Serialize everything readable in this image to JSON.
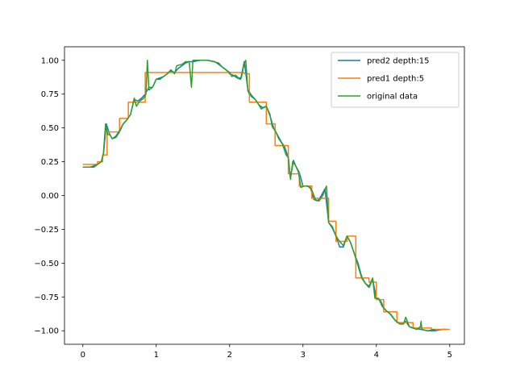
{
  "chart_data": {
    "type": "line",
    "title": "",
    "xlabel": "",
    "ylabel": "",
    "xlim": [
      -0.25,
      5.2
    ],
    "ylim": [
      -1.1,
      1.1
    ],
    "xticks": [
      0,
      1,
      2,
      3,
      4,
      5
    ],
    "xtick_labels": [
      "0",
      "1",
      "2",
      "3",
      "4",
      "5"
    ],
    "yticks": [
      1.0,
      0.75,
      0.5,
      0.25,
      0.0,
      -0.25,
      -0.5,
      -0.75,
      -1.0
    ],
    "ytick_labels": [
      "1.00",
      "0.75",
      "0.50",
      "0.25",
      "0.00",
      "−0.25",
      "−0.50",
      "−0.75",
      "−1.00"
    ],
    "grid": false,
    "legend_position": "top-right",
    "series": [
      {
        "name": "pred2 depth:15",
        "color": "#1f77b4",
        "points": [
          [
            0,
            0.21
          ],
          [
            0.1,
            0.21
          ],
          [
            0.15,
            0.21
          ],
          [
            0.2,
            0.23
          ],
          [
            0.25,
            0.25
          ],
          [
            0.28,
            0.3
          ],
          [
            0.32,
            0.53
          ],
          [
            0.36,
            0.46
          ],
          [
            0.4,
            0.42
          ],
          [
            0.45,
            0.43
          ],
          [
            0.5,
            0.47
          ],
          [
            0.55,
            0.53
          ],
          [
            0.6,
            0.56
          ],
          [
            0.65,
            0.6
          ],
          [
            0.7,
            0.71
          ],
          [
            0.75,
            0.7
          ],
          [
            0.8,
            0.72
          ],
          [
            0.85,
            0.75
          ],
          [
            0.9,
            0.8
          ],
          [
            0.95,
            0.8
          ],
          [
            1.0,
            0.86
          ],
          [
            1.05,
            0.86
          ],
          [
            1.1,
            0.88
          ],
          [
            1.15,
            0.9
          ],
          [
            1.2,
            0.92
          ],
          [
            1.25,
            0.91
          ],
          [
            1.3,
            0.94
          ],
          [
            1.35,
            0.96
          ],
          [
            1.4,
            0.98
          ],
          [
            1.45,
            0.99
          ],
          [
            1.5,
            0.99
          ],
          [
            1.6,
            1.0
          ],
          [
            1.7,
            1.0
          ],
          [
            1.8,
            0.99
          ],
          [
            1.85,
            0.97
          ],
          [
            1.9,
            0.95
          ],
          [
            1.95,
            0.93
          ],
          [
            2.0,
            0.9
          ],
          [
            2.05,
            0.89
          ],
          [
            2.1,
            0.87
          ],
          [
            2.15,
            0.86
          ],
          [
            2.2,
            0.99
          ],
          [
            2.25,
            0.78
          ],
          [
            2.3,
            0.74
          ],
          [
            2.35,
            0.71
          ],
          [
            2.4,
            0.67
          ],
          [
            2.45,
            0.65
          ],
          [
            2.5,
            0.66
          ],
          [
            2.55,
            0.59
          ],
          [
            2.6,
            0.5
          ],
          [
            2.65,
            0.45
          ],
          [
            2.7,
            0.4
          ],
          [
            2.75,
            0.36
          ],
          [
            2.8,
            0.28
          ],
          [
            2.83,
            0.13
          ],
          [
            2.87,
            0.26
          ],
          [
            2.9,
            0.22
          ],
          [
            2.95,
            0.17
          ],
          [
            3.0,
            0.07
          ],
          [
            3.05,
            0.07
          ],
          [
            3.1,
            0.06
          ],
          [
            3.15,
            -0.03
          ],
          [
            3.2,
            -0.04
          ],
          [
            3.25,
            0.0
          ],
          [
            3.3,
            0.05
          ],
          [
            3.35,
            -0.2
          ],
          [
            3.4,
            -0.24
          ],
          [
            3.45,
            -0.3
          ],
          [
            3.5,
            -0.38
          ],
          [
            3.55,
            -0.38
          ],
          [
            3.6,
            -0.3
          ],
          [
            3.65,
            -0.35
          ],
          [
            3.7,
            -0.43
          ],
          [
            3.75,
            -0.5
          ],
          [
            3.8,
            -0.6
          ],
          [
            3.85,
            -0.65
          ],
          [
            3.9,
            -0.68
          ],
          [
            3.95,
            -0.62
          ],
          [
            4.0,
            -0.76
          ],
          [
            4.05,
            -0.77
          ],
          [
            4.1,
            -0.83
          ],
          [
            4.15,
            -0.86
          ],
          [
            4.2,
            -0.88
          ],
          [
            4.25,
            -0.92
          ],
          [
            4.3,
            -0.94
          ],
          [
            4.35,
            -0.95
          ],
          [
            4.4,
            -0.93
          ],
          [
            4.45,
            -0.97
          ],
          [
            4.5,
            -0.98
          ],
          [
            4.6,
            -0.99
          ],
          [
            4.7,
            -1.0
          ],
          [
            4.8,
            -1.0
          ],
          [
            4.9,
            -0.99
          ],
          [
            4.95,
            -0.99
          ]
        ]
      },
      {
        "name": "pred1 depth:5",
        "color": "#ff7f0e",
        "points": [
          [
            0,
            0.23
          ],
          [
            0.2,
            0.23
          ],
          [
            0.2,
            0.25
          ],
          [
            0.27,
            0.25
          ],
          [
            0.27,
            0.3
          ],
          [
            0.33,
            0.3
          ],
          [
            0.33,
            0.47
          ],
          [
            0.5,
            0.47
          ],
          [
            0.5,
            0.57
          ],
          [
            0.62,
            0.57
          ],
          [
            0.62,
            0.69
          ],
          [
            0.85,
            0.69
          ],
          [
            0.85,
            0.91
          ],
          [
            2.2,
            0.91
          ],
          [
            2.2,
            0.9
          ],
          [
            2.27,
            0.9
          ],
          [
            2.27,
            0.69
          ],
          [
            2.5,
            0.69
          ],
          [
            2.5,
            0.53
          ],
          [
            2.62,
            0.53
          ],
          [
            2.62,
            0.37
          ],
          [
            2.8,
            0.37
          ],
          [
            2.8,
            0.16
          ],
          [
            2.95,
            0.16
          ],
          [
            2.95,
            0.07
          ],
          [
            3.12,
            0.07
          ],
          [
            3.12,
            -0.02
          ],
          [
            3.35,
            -0.02
          ],
          [
            3.35,
            -0.19
          ],
          [
            3.45,
            -0.19
          ],
          [
            3.45,
            -0.34
          ],
          [
            3.6,
            -0.34
          ],
          [
            3.6,
            -0.3
          ],
          [
            3.72,
            -0.3
          ],
          [
            3.72,
            -0.61
          ],
          [
            3.9,
            -0.61
          ],
          [
            3.9,
            -0.64
          ],
          [
            4.0,
            -0.64
          ],
          [
            4.0,
            -0.77
          ],
          [
            4.1,
            -0.77
          ],
          [
            4.1,
            -0.86
          ],
          [
            4.28,
            -0.86
          ],
          [
            4.28,
            -0.94
          ],
          [
            4.5,
            -0.94
          ],
          [
            4.5,
            -0.98
          ],
          [
            4.75,
            -0.98
          ],
          [
            4.75,
            -0.99
          ],
          [
            5.0,
            -0.99
          ]
        ]
      },
      {
        "name": "original data",
        "color": "#2ca02c",
        "points": [
          [
            0,
            0.21
          ],
          [
            0.1,
            0.21
          ],
          [
            0.15,
            0.22
          ],
          [
            0.2,
            0.23
          ],
          [
            0.25,
            0.25
          ],
          [
            0.28,
            0.31
          ],
          [
            0.31,
            0.53
          ],
          [
            0.34,
            0.45
          ],
          [
            0.37,
            0.45
          ],
          [
            0.4,
            0.42
          ],
          [
            0.45,
            0.44
          ],
          [
            0.5,
            0.48
          ],
          [
            0.55,
            0.53
          ],
          [
            0.6,
            0.56
          ],
          [
            0.65,
            0.6
          ],
          [
            0.7,
            0.72
          ],
          [
            0.73,
            0.66
          ],
          [
            0.78,
            0.7
          ],
          [
            0.83,
            0.72
          ],
          [
            0.86,
            0.75
          ],
          [
            0.88,
            1.0
          ],
          [
            0.9,
            0.78
          ],
          [
            0.95,
            0.8
          ],
          [
            1.0,
            0.86
          ],
          [
            1.05,
            0.87
          ],
          [
            1.1,
            0.88
          ],
          [
            1.15,
            0.9
          ],
          [
            1.2,
            0.93
          ],
          [
            1.25,
            0.9
          ],
          [
            1.28,
            0.96
          ],
          [
            1.35,
            0.97
          ],
          [
            1.4,
            0.99
          ],
          [
            1.45,
            0.99
          ],
          [
            1.48,
            0.8
          ],
          [
            1.5,
            1.0
          ],
          [
            1.6,
            1.0
          ],
          [
            1.7,
            1.0
          ],
          [
            1.78,
            0.99
          ],
          [
            1.85,
            0.98
          ],
          [
            1.9,
            0.95
          ],
          [
            1.95,
            0.93
          ],
          [
            2.0,
            0.91
          ],
          [
            2.03,
            0.88
          ],
          [
            2.08,
            0.89
          ],
          [
            2.12,
            0.87
          ],
          [
            2.16,
            0.87
          ],
          [
            2.2,
            0.98
          ],
          [
            2.22,
            1.0
          ],
          [
            2.25,
            0.77
          ],
          [
            2.3,
            0.73
          ],
          [
            2.35,
            0.71
          ],
          [
            2.4,
            0.67
          ],
          [
            2.43,
            0.64
          ],
          [
            2.5,
            0.66
          ],
          [
            2.55,
            0.6
          ],
          [
            2.58,
            0.51
          ],
          [
            2.63,
            0.47
          ],
          [
            2.67,
            0.42
          ],
          [
            2.72,
            0.38
          ],
          [
            2.77,
            0.3
          ],
          [
            2.8,
            0.28
          ],
          [
            2.83,
            0.12
          ],
          [
            2.86,
            0.25
          ],
          [
            2.9,
            0.22
          ],
          [
            2.94,
            0.17
          ],
          [
            2.97,
            0.06
          ],
          [
            3.02,
            0.07
          ],
          [
            3.07,
            0.07
          ],
          [
            3.12,
            0.04
          ],
          [
            3.17,
            -0.03
          ],
          [
            3.22,
            -0.04
          ],
          [
            3.27,
            0.0
          ],
          [
            3.32,
            0.07
          ],
          [
            3.35,
            -0.2
          ],
          [
            3.4,
            -0.23
          ],
          [
            3.45,
            -0.3
          ],
          [
            3.5,
            -0.34
          ],
          [
            3.55,
            -0.37
          ],
          [
            3.6,
            -0.3
          ],
          [
            3.65,
            -0.35
          ],
          [
            3.7,
            -0.43
          ],
          [
            3.75,
            -0.52
          ],
          [
            3.8,
            -0.61
          ],
          [
            3.85,
            -0.65
          ],
          [
            3.9,
            -0.67
          ],
          [
            3.95,
            -0.61
          ],
          [
            3.98,
            -0.76
          ],
          [
            4.03,
            -0.76
          ],
          [
            4.08,
            -0.82
          ],
          [
            4.13,
            -0.85
          ],
          [
            4.18,
            -0.87
          ],
          [
            4.22,
            -0.9
          ],
          [
            4.27,
            -0.93
          ],
          [
            4.32,
            -0.95
          ],
          [
            4.37,
            -0.95
          ],
          [
            4.4,
            -0.9
          ],
          [
            4.45,
            -0.97
          ],
          [
            4.5,
            -0.98
          ],
          [
            4.55,
            -0.99
          ],
          [
            4.6,
            -0.97
          ],
          [
            4.61,
            -0.93
          ],
          [
            4.62,
            -0.99
          ],
          [
            4.7,
            -1.0
          ],
          [
            4.8,
            -0.99
          ]
        ]
      }
    ]
  }
}
